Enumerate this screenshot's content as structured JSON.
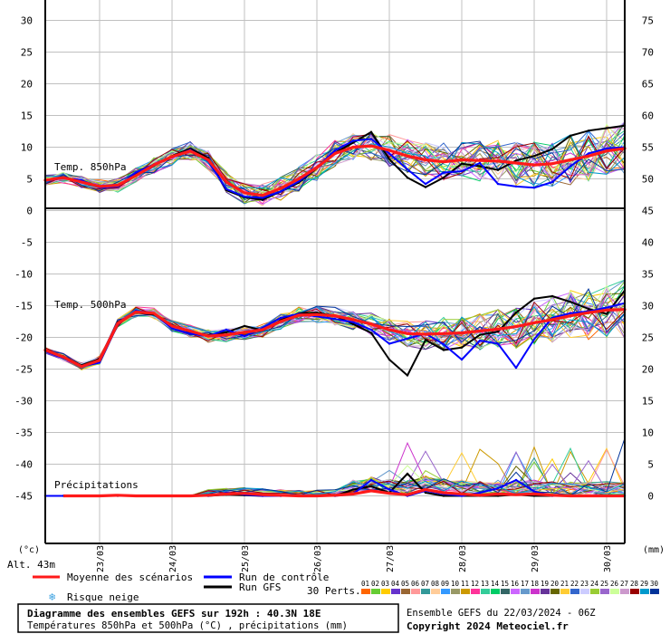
{
  "chart_data": {
    "type": "line",
    "title_line1": "Diagramme des ensembles GEFS sur 192h : 40.3N 18E",
    "title_line2": "Températures 850hPa et 500hPa (°C) , précipitations (mm)",
    "run_info": "Ensemble GEFS du 22/03/2024 - 06Z",
    "copyright": "Copyright 2024 Meteociel.fr",
    "altitude": "Alt. 43m",
    "left_unit": "(°c)",
    "right_unit": "(mm)",
    "x_range_hours": [
      0,
      192
    ],
    "x_ticks": [
      {
        "label": "23/03",
        "h": 18
      },
      {
        "label": "24/03",
        "h": 42
      },
      {
        "label": "25/03",
        "h": 66
      },
      {
        "label": "26/03",
        "h": 90
      },
      {
        "label": "27/03",
        "h": 114
      },
      {
        "label": "28/03",
        "h": 138
      },
      {
        "label": "29/03",
        "h": 162
      },
      {
        "label": "30/03",
        "h": 186
      }
    ],
    "y_left_ticks": [
      30,
      25,
      20,
      15,
      10,
      5,
      0,
      -5,
      -10,
      -15,
      -20,
      -25,
      -30,
      -35,
      -40,
      -45
    ],
    "y_right_ticks": [
      75,
      70,
      65,
      60,
      55,
      50,
      45,
      40,
      35,
      30,
      25,
      20,
      15,
      10,
      5,
      0
    ],
    "y_left_range": [
      -53,
      33
    ],
    "panels": [
      {
        "label": "Temp. 850hPa"
      },
      {
        "label": "Temp. 500hPa"
      },
      {
        "label": "Précipitations"
      }
    ],
    "legend": {
      "mean": "Moyenne des scénarios",
      "control": "Run de contrôle",
      "gfs": "Run GFS",
      "snow": "Risque neige",
      "perts_label": "30 Perts.",
      "perts_numbers": [
        "01",
        "02",
        "03",
        "04",
        "05",
        "06",
        "07",
        "08",
        "09",
        "10",
        "11",
        "12",
        "13",
        "14",
        "15",
        "16",
        "17",
        "18",
        "19",
        "20",
        "21",
        "22",
        "23",
        "24",
        "25",
        "26",
        "27",
        "28",
        "29",
        "30"
      ]
    },
    "colors": {
      "mean": "#ff1a1a",
      "control": "#0000ff",
      "gfs": "#000000",
      "grid": "#c0c0c0",
      "perts": [
        "#ff6600",
        "#66cc33",
        "#ffcc00",
        "#6633cc",
        "#996633",
        "#ff9999",
        "#339999",
        "#ffcc99",
        "#3399ff",
        "#999966",
        "#cc9900",
        "#ff3399",
        "#33cc99",
        "#00cc66",
        "#336666",
        "#cc66ff",
        "#6699cc",
        "#cc33cc",
        "#663399",
        "#666600",
        "#ffcc33",
        "#3366cc",
        "#ccccff",
        "#99cc33",
        "#9966cc",
        "#ccff99",
        "#cc99cc",
        "#990000",
        "#0099cc",
        "#003399"
      ]
    },
    "series": {
      "t850_mean": {
        "x": [
          0,
          6,
          12,
          18,
          24,
          30,
          36,
          42,
          48,
          54,
          60,
          66,
          72,
          78,
          84,
          90,
          96,
          102,
          108,
          114,
          120,
          126,
          132,
          138,
          144,
          150,
          156,
          162,
          168,
          174,
          180,
          186,
          192
        ],
        "y": [
          4.8,
          5.2,
          4.5,
          3.8,
          4.0,
          5.5,
          7.2,
          8.5,
          9.4,
          8.0,
          4.5,
          2.8,
          2.4,
          3.5,
          5.0,
          6.8,
          9.0,
          10.0,
          10.2,
          9.5,
          8.6,
          8.0,
          7.7,
          8.0,
          7.9,
          7.8,
          7.5,
          7.2,
          7.4,
          8.0,
          8.6,
          9.4,
          9.8
        ]
      },
      "t850_control": {
        "x": [
          0,
          6,
          12,
          18,
          24,
          30,
          36,
          42,
          48,
          54,
          60,
          66,
          72,
          78,
          84,
          90,
          96,
          102,
          108,
          114,
          120,
          126,
          132,
          138,
          144,
          150,
          156,
          162,
          168,
          174,
          180,
          186,
          192
        ],
        "y": [
          4.7,
          5.1,
          4.8,
          3.6,
          3.8,
          6.0,
          7.3,
          8.4,
          9.6,
          7.8,
          3.4,
          2.2,
          2.0,
          3.0,
          4.6,
          6.8,
          9.5,
          11.0,
          11.3,
          9.0,
          6.5,
          4.2,
          6.0,
          6.2,
          7.5,
          4.2,
          3.8,
          3.6,
          4.5,
          7.0,
          9.0,
          9.8,
          10.0
        ]
      },
      "t850_gfs": {
        "x": [
          0,
          6,
          12,
          18,
          24,
          30,
          36,
          42,
          48,
          54,
          60,
          66,
          72,
          78,
          84,
          90,
          96,
          102,
          108,
          114,
          120,
          126,
          132,
          138,
          144,
          150,
          156,
          162,
          168,
          174,
          180,
          186,
          192
        ],
        "y": [
          4.8,
          5.3,
          4.6,
          3.7,
          3.9,
          5.7,
          7.1,
          8.6,
          9.8,
          8.3,
          3.2,
          2.1,
          1.7,
          3.0,
          4.4,
          6.7,
          9.1,
          10.7,
          12.4,
          8.1,
          5.2,
          3.7,
          5.2,
          7.4,
          7.0,
          6.4,
          7.9,
          8.6,
          9.7,
          11.8,
          12.6,
          13.0,
          13.4
        ]
      },
      "t500_mean": {
        "x": [
          0,
          6,
          12,
          18,
          24,
          30,
          36,
          42,
          48,
          54,
          60,
          66,
          72,
          78,
          84,
          90,
          96,
          102,
          108,
          114,
          120,
          126,
          132,
          138,
          144,
          150,
          156,
          162,
          168,
          174,
          180,
          186,
          192
        ],
        "y": [
          -22.0,
          -23.1,
          -24.6,
          -23.6,
          -17.8,
          -16.0,
          -16.2,
          -18.2,
          -19.0,
          -19.8,
          -19.6,
          -19.2,
          -18.8,
          -17.5,
          -16.5,
          -16.4,
          -16.6,
          -17.2,
          -17.9,
          -18.8,
          -19.4,
          -19.5,
          -19.4,
          -19.3,
          -19.0,
          -18.7,
          -18.3,
          -17.7,
          -17.2,
          -16.6,
          -16.1,
          -15.7,
          -15.6
        ]
      },
      "t500_control": {
        "x": [
          0,
          6,
          12,
          18,
          24,
          30,
          36,
          42,
          48,
          54,
          60,
          66,
          72,
          78,
          84,
          90,
          96,
          102,
          108,
          114,
          120,
          126,
          132,
          138,
          144,
          150,
          156,
          162,
          168,
          174,
          180,
          186,
          192
        ],
        "y": [
          -22.2,
          -23.3,
          -24.6,
          -24.0,
          -18.0,
          -15.8,
          -16.2,
          -18.6,
          -19.4,
          -19.8,
          -18.8,
          -19.8,
          -18.5,
          -16.9,
          -16.3,
          -16.7,
          -17.1,
          -17.6,
          -18.8,
          -21.0,
          -20.2,
          -19.4,
          -21.1,
          -23.5,
          -20.5,
          -21.0,
          -24.8,
          -20.3,
          -16.9,
          -16.2,
          -15.9,
          -15.3,
          -14.6
        ]
      },
      "t500_gfs": {
        "x": [
          0,
          6,
          12,
          18,
          24,
          30,
          36,
          42,
          48,
          54,
          60,
          66,
          72,
          78,
          84,
          90,
          96,
          102,
          108,
          114,
          120,
          126,
          132,
          138,
          144,
          150,
          156,
          162,
          168,
          174,
          180,
          186,
          192
        ],
        "y": [
          -22.1,
          -23.0,
          -24.4,
          -23.4,
          -17.6,
          -16.1,
          -16.4,
          -18.0,
          -19.2,
          -19.6,
          -19.2,
          -18.2,
          -18.9,
          -17.3,
          -16.2,
          -16.1,
          -16.6,
          -17.9,
          -19.3,
          -23.5,
          -26.0,
          -20.4,
          -22.0,
          -21.6,
          -19.6,
          -19.1,
          -16.1,
          -13.9,
          -13.5,
          -14.4,
          -15.5,
          -16.3,
          -12.6
        ]
      },
      "precip_mean": {
        "x": [
          0,
          6,
          12,
          18,
          24,
          30,
          36,
          42,
          48,
          54,
          60,
          66,
          72,
          78,
          84,
          90,
          96,
          102,
          108,
          114,
          120,
          126,
          132,
          138,
          144,
          150,
          156,
          162,
          168,
          174,
          180,
          186,
          192
        ],
        "y": [
          0,
          0,
          0,
          0,
          0.1,
          0,
          0,
          0,
          0,
          0.1,
          0.3,
          0.4,
          0.2,
          0.1,
          0,
          0,
          0.1,
          0.3,
          0.8,
          0.4,
          0.2,
          1.0,
          0.5,
          0.3,
          0.1,
          0.3,
          0.2,
          0.3,
          0.1,
          0,
          0,
          0,
          0
        ]
      },
      "precip_control": {
        "x": [
          0,
          6,
          12,
          18,
          24,
          30,
          36,
          42,
          48,
          54,
          60,
          66,
          72,
          78,
          84,
          90,
          96,
          102,
          108,
          114,
          120,
          126,
          132,
          138,
          144,
          150,
          156,
          162,
          168,
          174,
          180,
          186,
          192
        ],
        "y": [
          0,
          0,
          0,
          0,
          0,
          0,
          0,
          0,
          0,
          0,
          0.5,
          0.2,
          0,
          0,
          0,
          0,
          0,
          0.3,
          2.5,
          1.0,
          0,
          0.8,
          0.3,
          0,
          0.5,
          1.2,
          2.5,
          0.7,
          0,
          0,
          0,
          0,
          0
        ]
      },
      "precip_gfs": {
        "x": [
          0,
          6,
          12,
          18,
          24,
          30,
          36,
          42,
          48,
          54,
          60,
          66,
          72,
          78,
          84,
          90,
          96,
          102,
          108,
          114,
          120,
          126,
          132,
          138,
          144,
          150,
          156,
          162,
          168,
          174,
          180,
          186,
          192
        ],
        "y": [
          0,
          0,
          0,
          0,
          0,
          0,
          0,
          0,
          0,
          0,
          0.2,
          0.1,
          0,
          0,
          0,
          0,
          0,
          1.0,
          1.5,
          0.5,
          3.5,
          0.5,
          0,
          0,
          0,
          0,
          0.2,
          0,
          0,
          0,
          0,
          0,
          0
        ]
      }
    }
  }
}
